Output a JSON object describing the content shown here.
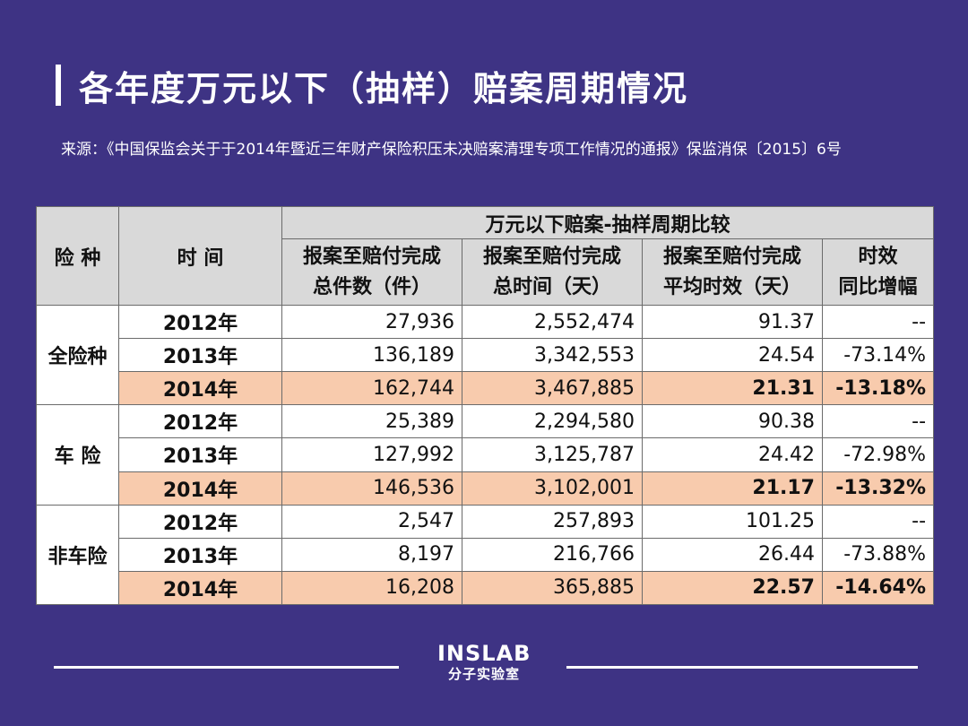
{
  "title": "各年度万元以下（抽样）赔案周期情况",
  "source": "来源：《中国保监会关于于2014年暨近三年财产保险积压未决赔案清理专项工作情况的通报》保监消保〔2015〕6号",
  "table": {
    "header": {
      "col_category": "险 种",
      "col_time": "时 间",
      "group_title": "万元以下赔案-抽样周期比较",
      "col_count_l1": "报案至赔付完成",
      "col_count_l2": "总件数（件）",
      "col_total_l1": "报案至赔付完成",
      "col_total_l2": "总时间（天）",
      "col_avg_l1": "报案至赔付完成",
      "col_avg_l2": "平均时效（天）",
      "col_yoy_l1": "时效",
      "col_yoy_l2": "同比增幅"
    },
    "groups": [
      {
        "category": "全险种",
        "rows": [
          {
            "year": "2012年",
            "count": "27,936",
            "total": "2,552,474",
            "avg": "91.37",
            "yoy": "--"
          },
          {
            "year": "2013年",
            "count": "136,189",
            "total": "3,342,553",
            "avg": "24.54",
            "yoy": "-73.14%"
          },
          {
            "year": "2014年",
            "count": "162,744",
            "total": "3,467,885",
            "avg": "21.31",
            "yoy": "-13.18%"
          }
        ]
      },
      {
        "category": "车 险",
        "rows": [
          {
            "year": "2012年",
            "count": "25,389",
            "total": "2,294,580",
            "avg": "90.38",
            "yoy": "--"
          },
          {
            "year": "2013年",
            "count": "127,992",
            "total": "3,125,787",
            "avg": "24.42",
            "yoy": "-72.98%"
          },
          {
            "year": "2014年",
            "count": "146,536",
            "total": "3,102,001",
            "avg": "21.17",
            "yoy": "-13.32%"
          }
        ]
      },
      {
        "category": "非车险",
        "rows": [
          {
            "year": "2012年",
            "count": "2,547",
            "total": "257,893",
            "avg": "101.25",
            "yoy": "--"
          },
          {
            "year": "2013年",
            "count": "8,197",
            "total": "216,766",
            "avg": "26.44",
            "yoy": "-73.88%"
          },
          {
            "year": "2014年",
            "count": "16,208",
            "total": "365,885",
            "avg": "22.57",
            "yoy": "-14.64%"
          }
        ]
      }
    ]
  },
  "brand": {
    "en": "INSLAB",
    "cn": "分子实验室"
  },
  "colors": {
    "background": "#3e3384",
    "header": "#d9d9d9",
    "highlight": "#f8cbad"
  }
}
